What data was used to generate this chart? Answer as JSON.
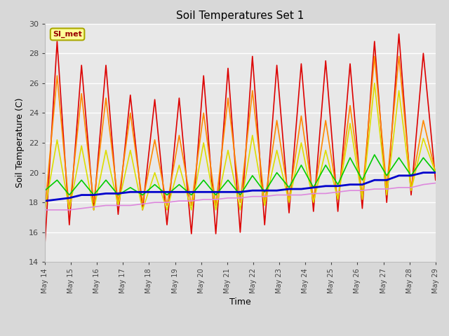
{
  "title": "Soil Temperatures Set 1",
  "xlabel": "Time",
  "ylabel": "Soil Temperature (C)",
  "ylim": [
    14,
    30
  ],
  "background_color": "#d8d8d8",
  "plot_bg_color": "#e8e8e8",
  "annotation_text": "SI_met",
  "annotation_bg": "#ffff99",
  "annotation_border": "#aaa800",
  "annotation_text_color": "#990000",
  "x_tick_labels": [
    "May 14",
    "May 15",
    "May 16",
    "May 17",
    "May 18",
    "May 19",
    "May 20",
    "May 21",
    "May 22",
    "May 23",
    "May 24",
    "May 25",
    "May 26",
    "May 27",
    "May 28",
    "May 29"
  ],
  "series": {
    "TC1_2Cm": {
      "color": "#dd0000",
      "linewidth": 1.2,
      "data": [
        15.2,
        28.8,
        16.5,
        27.2,
        17.5,
        27.2,
        17.2,
        25.2,
        17.5,
        24.9,
        16.5,
        25.0,
        15.9,
        26.5,
        15.9,
        27.0,
        16.0,
        27.8,
        16.5,
        27.2,
        17.3,
        27.3,
        17.4,
        27.5,
        17.4,
        27.3,
        17.6,
        28.8,
        18.0,
        29.3,
        18.5,
        28.0,
        19.5
      ]
    },
    "TC1_4Cm": {
      "color": "#ff8800",
      "linewidth": 1.2,
      "data": [
        17.5,
        26.5,
        17.5,
        25.3,
        18.0,
        25.0,
        18.0,
        24.0,
        18.0,
        22.2,
        17.8,
        22.5,
        17.8,
        24.0,
        17.8,
        25.0,
        18.0,
        25.5,
        18.0,
        23.5,
        18.2,
        23.8,
        18.2,
        23.5,
        18.2,
        24.5,
        18.5,
        27.8,
        19.0,
        27.8,
        19.0,
        23.5,
        20.0
      ]
    },
    "TC1_8Cm": {
      "color": "#dddd00",
      "linewidth": 1.2,
      "data": [
        17.5,
        22.2,
        17.5,
        21.8,
        17.5,
        21.5,
        17.8,
        21.5,
        17.5,
        20.0,
        17.5,
        20.5,
        17.5,
        22.0,
        17.5,
        21.5,
        17.5,
        22.5,
        17.8,
        21.5,
        18.0,
        22.0,
        18.0,
        21.5,
        18.2,
        23.3,
        18.2,
        26.0,
        18.5,
        25.5,
        18.8,
        22.3,
        20.0
      ]
    },
    "TC1_16Cm": {
      "color": "#00cc00",
      "linewidth": 1.2,
      "data": [
        18.8,
        19.5,
        18.5,
        19.5,
        18.5,
        19.5,
        18.5,
        19.0,
        18.5,
        19.2,
        18.5,
        19.2,
        18.5,
        19.5,
        18.5,
        19.5,
        18.5,
        19.8,
        18.7,
        20.0,
        19.0,
        20.5,
        19.0,
        20.5,
        19.2,
        21.0,
        19.5,
        21.2,
        19.8,
        21.0,
        19.8,
        21.0,
        20.0
      ]
    },
    "TC1_32Cm": {
      "color": "#0000cc",
      "linewidth": 2.0,
      "data": [
        18.1,
        18.2,
        18.3,
        18.5,
        18.5,
        18.6,
        18.6,
        18.7,
        18.7,
        18.7,
        18.7,
        18.7,
        18.7,
        18.7,
        18.7,
        18.7,
        18.7,
        18.8,
        18.8,
        18.8,
        18.9,
        18.9,
        19.0,
        19.1,
        19.1,
        19.2,
        19.2,
        19.5,
        19.5,
        19.8,
        19.8,
        20.0,
        20.0
      ]
    },
    "TC1_50Cm": {
      "color": "#dd88dd",
      "linewidth": 1.2,
      "data": [
        17.5,
        17.5,
        17.5,
        17.6,
        17.7,
        17.8,
        17.8,
        17.8,
        17.9,
        18.0,
        18.0,
        18.1,
        18.1,
        18.2,
        18.2,
        18.3,
        18.3,
        18.4,
        18.4,
        18.5,
        18.5,
        18.5,
        18.6,
        18.6,
        18.7,
        18.8,
        18.8,
        18.9,
        18.9,
        19.0,
        19.0,
        19.2,
        19.3
      ]
    }
  }
}
